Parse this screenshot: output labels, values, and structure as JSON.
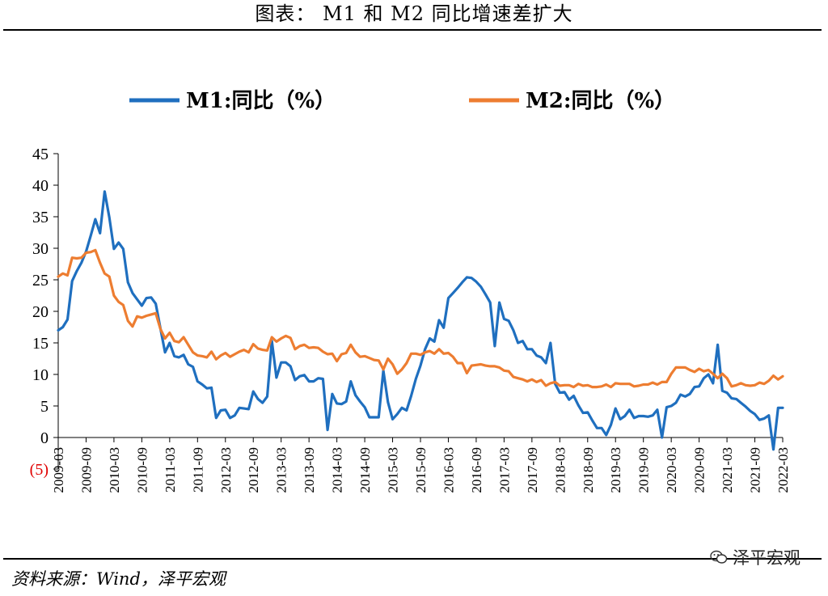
{
  "header": {
    "title": "图表：  M1 和 M2 同比增速差扩大"
  },
  "footer": {
    "source": "资料来源：Wind，泽平宏观",
    "watermark": "泽平宏观"
  },
  "chart_data": {
    "type": "line",
    "title": "图表：  M1 和 M2 同比增速差扩大",
    "ylim": [
      -5,
      45
    ],
    "y_ticks": [
      45,
      40,
      35,
      30,
      25,
      20,
      15,
      10,
      5,
      0,
      -5
    ],
    "y_tick_labels": [
      "45",
      "40",
      "35",
      "30",
      "25",
      "20",
      "15",
      "10",
      "5",
      "0",
      "(5)"
    ],
    "negative_label_color": "#e00000",
    "x_tick_labels": [
      "2009-03",
      "2009-09",
      "2010-03",
      "2010-09",
      "2011-03",
      "2011-09",
      "2012-03",
      "2012-09",
      "2013-03",
      "2013-09",
      "2014-03",
      "2014-09",
      "2015-03",
      "2015-09",
      "2016-03",
      "2016-09",
      "2017-03",
      "2017-09",
      "2018-03",
      "2018-09",
      "2019-03",
      "2019-09",
      "2020-03",
      "2020-09",
      "2021-03",
      "2021-09",
      "2022-03"
    ],
    "grid": false,
    "legend": "top",
    "series": [
      {
        "name": "M1:同比（%）",
        "color": "#1f6fbf",
        "x": [
          "2009-03",
          "2009-04",
          "2009-05",
          "2009-06",
          "2009-07",
          "2009-08",
          "2009-09",
          "2009-10",
          "2009-11",
          "2009-12",
          "2010-01",
          "2010-02",
          "2010-03",
          "2010-04",
          "2010-05",
          "2010-06",
          "2010-07",
          "2010-08",
          "2010-09",
          "2010-10",
          "2010-11",
          "2010-12",
          "2011-01",
          "2011-02",
          "2011-03",
          "2011-04",
          "2011-05",
          "2011-06",
          "2011-07",
          "2011-08",
          "2011-09",
          "2011-10",
          "2011-11",
          "2011-12",
          "2012-01",
          "2012-02",
          "2012-03",
          "2012-04",
          "2012-05",
          "2012-06",
          "2012-07",
          "2012-08",
          "2012-09",
          "2012-10",
          "2012-11",
          "2012-12",
          "2013-01",
          "2013-02",
          "2013-03",
          "2013-04",
          "2013-05",
          "2013-06",
          "2013-07",
          "2013-08",
          "2013-09",
          "2013-10",
          "2013-11",
          "2013-12",
          "2014-01",
          "2014-02",
          "2014-03",
          "2014-04",
          "2014-05",
          "2014-06",
          "2014-07",
          "2014-08",
          "2014-09",
          "2014-10",
          "2014-11",
          "2014-12",
          "2015-01",
          "2015-02",
          "2015-03",
          "2015-04",
          "2015-05",
          "2015-06",
          "2015-07",
          "2015-08",
          "2015-09",
          "2015-10",
          "2015-11",
          "2015-12",
          "2016-01",
          "2016-02",
          "2016-03",
          "2016-04",
          "2016-05",
          "2016-06",
          "2016-07",
          "2016-08",
          "2016-09",
          "2016-10",
          "2016-11",
          "2016-12",
          "2017-01",
          "2017-02",
          "2017-03",
          "2017-04",
          "2017-05",
          "2017-06",
          "2017-07",
          "2017-08",
          "2017-09",
          "2017-10",
          "2017-11",
          "2017-12",
          "2018-01",
          "2018-02",
          "2018-03",
          "2018-04",
          "2018-05",
          "2018-06",
          "2018-07",
          "2018-08",
          "2018-09",
          "2018-10",
          "2018-11",
          "2018-12",
          "2019-01",
          "2019-02",
          "2019-03",
          "2019-04",
          "2019-05",
          "2019-06",
          "2019-07",
          "2019-08",
          "2019-09",
          "2019-10",
          "2019-11",
          "2019-12",
          "2020-01",
          "2020-02",
          "2020-03",
          "2020-04",
          "2020-05",
          "2020-06",
          "2020-07",
          "2020-08",
          "2020-09",
          "2020-10",
          "2020-11",
          "2020-12",
          "2021-01",
          "2021-02",
          "2021-03",
          "2021-04",
          "2021-05",
          "2021-06",
          "2021-07",
          "2021-08",
          "2021-09",
          "2021-10",
          "2021-11",
          "2021-12",
          "2022-01",
          "2022-02",
          "2022-03"
        ],
        "values": [
          17.0,
          17.5,
          18.7,
          24.8,
          26.4,
          27.7,
          29.5,
          32.0,
          34.6,
          32.4,
          39.0,
          34.9,
          29.9,
          30.9,
          29.9,
          24.6,
          22.9,
          21.9,
          20.9,
          22.1,
          22.2,
          21.2,
          17.3,
          13.5,
          15.0,
          12.9,
          12.7,
          13.1,
          11.6,
          11.2,
          8.9,
          8.4,
          7.8,
          7.9,
          3.1,
          4.3,
          4.4,
          3.1,
          3.5,
          4.7,
          4.6,
          4.5,
          7.3,
          6.1,
          5.5,
          6.5,
          15.3,
          9.5,
          11.9,
          11.9,
          11.3,
          9.1,
          9.7,
          9.9,
          8.9,
          8.9,
          9.4,
          9.3,
          1.2,
          6.9,
          5.4,
          5.3,
          5.7,
          8.9,
          6.7,
          5.7,
          4.8,
          3.2,
          3.2,
          3.2,
          10.6,
          5.6,
          2.9,
          3.7,
          4.7,
          4.3,
          6.6,
          9.3,
          11.4,
          14.0,
          15.7,
          15.2,
          18.6,
          17.4,
          22.1,
          22.9,
          23.7,
          24.6,
          25.4,
          25.3,
          24.7,
          23.9,
          22.7,
          21.4,
          14.5,
          21.4,
          18.8,
          18.5,
          17.0,
          15.0,
          15.3,
          14.0,
          14.0,
          13.0,
          12.7,
          11.8,
          15.0,
          8.5,
          7.1,
          7.2,
          6.0,
          6.6,
          5.1,
          3.9,
          4.0,
          2.7,
          1.5,
          1.5,
          0.4,
          2.0,
          4.6,
          2.9,
          3.4,
          4.4,
          3.1,
          3.4,
          3.4,
          3.3,
          3.5,
          4.4,
          0.0,
          4.8,
          5.0,
          5.5,
          6.8,
          6.5,
          6.9,
          8.0,
          8.1,
          9.4,
          10.0,
          8.6,
          14.7,
          7.4,
          7.1,
          6.2,
          6.1,
          5.5,
          4.9,
          4.2,
          3.7,
          2.8,
          3.0,
          3.5,
          -1.9,
          4.7,
          4.7
        ]
      },
      {
        "name": "M2:同比（%）",
        "color": "#ed7d31",
        "x": [
          "2009-03",
          "2009-04",
          "2009-05",
          "2009-06",
          "2009-07",
          "2009-08",
          "2009-09",
          "2009-10",
          "2009-11",
          "2009-12",
          "2010-01",
          "2010-02",
          "2010-03",
          "2010-04",
          "2010-05",
          "2010-06",
          "2010-07",
          "2010-08",
          "2010-09",
          "2010-10",
          "2010-11",
          "2010-12",
          "2011-01",
          "2011-02",
          "2011-03",
          "2011-04",
          "2011-05",
          "2011-06",
          "2011-07",
          "2011-08",
          "2011-09",
          "2011-10",
          "2011-11",
          "2011-12",
          "2012-01",
          "2012-02",
          "2012-03",
          "2012-04",
          "2012-05",
          "2012-06",
          "2012-07",
          "2012-08",
          "2012-09",
          "2012-10",
          "2012-11",
          "2012-12",
          "2013-01",
          "2013-02",
          "2013-03",
          "2013-04",
          "2013-05",
          "2013-06",
          "2013-07",
          "2013-08",
          "2013-09",
          "2013-10",
          "2013-11",
          "2013-12",
          "2014-01",
          "2014-02",
          "2014-03",
          "2014-04",
          "2014-05",
          "2014-06",
          "2014-07",
          "2014-08",
          "2014-09",
          "2014-10",
          "2014-11",
          "2014-12",
          "2015-01",
          "2015-02",
          "2015-03",
          "2015-04",
          "2015-05",
          "2015-06",
          "2015-07",
          "2015-08",
          "2015-09",
          "2015-10",
          "2015-11",
          "2015-12",
          "2016-01",
          "2016-02",
          "2016-03",
          "2016-04",
          "2016-05",
          "2016-06",
          "2016-07",
          "2016-08",
          "2016-09",
          "2016-10",
          "2016-11",
          "2016-12",
          "2017-01",
          "2017-02",
          "2017-03",
          "2017-04",
          "2017-05",
          "2017-06",
          "2017-07",
          "2017-08",
          "2017-09",
          "2017-10",
          "2017-11",
          "2017-12",
          "2018-01",
          "2018-02",
          "2018-03",
          "2018-04",
          "2018-05",
          "2018-06",
          "2018-07",
          "2018-08",
          "2018-09",
          "2018-10",
          "2018-11",
          "2018-12",
          "2019-01",
          "2019-02",
          "2019-03",
          "2019-04",
          "2019-05",
          "2019-06",
          "2019-07",
          "2019-08",
          "2019-09",
          "2019-10",
          "2019-11",
          "2019-12",
          "2020-01",
          "2020-02",
          "2020-03",
          "2020-04",
          "2020-05",
          "2020-06",
          "2020-07",
          "2020-08",
          "2020-09",
          "2020-10",
          "2020-11",
          "2020-12",
          "2021-01",
          "2021-02",
          "2021-03",
          "2021-04",
          "2021-05",
          "2021-06",
          "2021-07",
          "2021-08",
          "2021-09",
          "2021-10",
          "2021-11",
          "2021-12",
          "2022-01",
          "2022-02",
          "2022-03"
        ],
        "values": [
          25.5,
          26.0,
          25.7,
          28.5,
          28.4,
          28.5,
          29.3,
          29.4,
          29.7,
          27.7,
          26.0,
          25.5,
          22.5,
          21.5,
          21.0,
          18.5,
          17.6,
          19.2,
          19.0,
          19.3,
          19.5,
          19.7,
          17.2,
          15.7,
          16.6,
          15.3,
          15.1,
          15.9,
          14.7,
          13.5,
          13.0,
          12.9,
          12.7,
          13.6,
          12.4,
          13.0,
          13.4,
          12.8,
          13.2,
          13.6,
          13.9,
          13.5,
          14.8,
          14.1,
          13.9,
          13.8,
          15.9,
          15.2,
          15.7,
          16.1,
          15.8,
          14.0,
          14.5,
          14.7,
          14.2,
          14.3,
          14.2,
          13.6,
          13.2,
          13.3,
          12.1,
          13.2,
          13.4,
          14.7,
          13.5,
          12.8,
          12.9,
          12.6,
          12.3,
          12.2,
          10.8,
          12.5,
          11.6,
          10.1,
          10.8,
          11.8,
          13.3,
          13.3,
          13.1,
          13.5,
          13.7,
          13.3,
          14.0,
          13.3,
          13.4,
          12.8,
          11.8,
          11.8,
          10.2,
          11.4,
          11.5,
          11.6,
          11.4,
          11.3,
          11.3,
          11.1,
          10.6,
          10.5,
          9.6,
          9.4,
          9.2,
          8.9,
          9.2,
          8.8,
          9.1,
          8.2,
          8.6,
          8.8,
          8.2,
          8.3,
          8.3,
          8.0,
          8.5,
          8.2,
          8.3,
          8.0,
          8.0,
          8.1,
          8.4,
          8.0,
          8.6,
          8.5,
          8.5,
          8.5,
          8.1,
          8.2,
          8.4,
          8.4,
          8.7,
          8.4,
          8.8,
          8.8,
          10.1,
          11.1,
          11.1,
          11.1,
          10.7,
          10.4,
          10.9,
          10.5,
          10.7,
          10.1,
          9.4,
          10.1,
          9.4,
          8.1,
          8.3,
          8.6,
          8.3,
          8.2,
          8.3,
          8.7,
          8.5,
          9.0,
          9.8,
          9.2,
          9.7
        ]
      }
    ]
  }
}
